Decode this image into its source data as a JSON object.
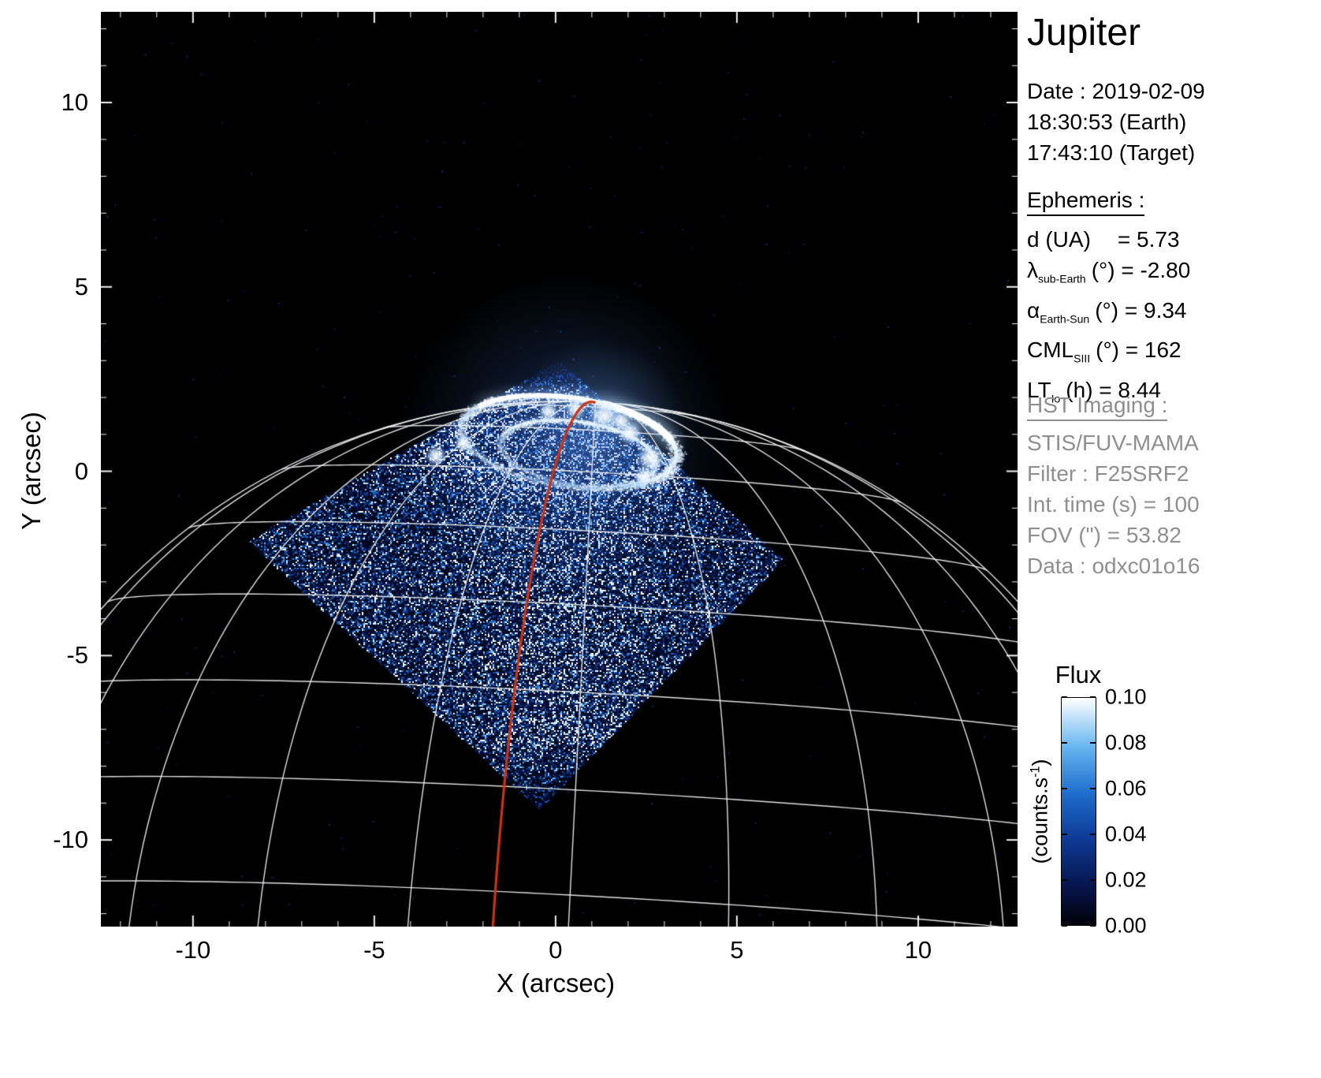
{
  "title": "Jupiter",
  "axes": {
    "x_title": "X (arcsec)",
    "y_title": "Y (arcsec)",
    "x_tick_labels": [
      "-10",
      "-5",
      "0",
      "5",
      "10"
    ],
    "y_tick_labels": [
      "10",
      "5",
      "0",
      "-5",
      "-10"
    ]
  },
  "info": {
    "date_lines": [
      "Date : 2019-02-09",
      "18:30:53 (Earth)",
      "17:43:10 (Target)"
    ],
    "ephemeris_header": "Ephemeris :",
    "ephemeris_rows": [
      {
        "base": "d (UA)",
        "sub": "",
        "rest": "= 5.73",
        "gap": true
      },
      {
        "base": "λ",
        "sub": "sub-Earth",
        "rest": "(°) = -2.80"
      },
      {
        "base": "α",
        "sub": "Earth-Sun",
        "rest": "(°) = 9.34"
      },
      {
        "base": "CML",
        "sub": "SIII",
        "rest": "(°) = 162"
      },
      {
        "base": "LT",
        "sub": "Io",
        "rest": "(h) = 8.44"
      }
    ],
    "hst_header": "HST Imaging :",
    "hst_lines": [
      "STIS/FUV-MAMA",
      "Filter : F25SRF2",
      "Int. time (s) = 100",
      "FOV (\") = 53.82",
      "Data : odxc01o16"
    ]
  },
  "colorbar": {
    "title": "Flux",
    "tick_labels": [
      "0.10",
      "0.08",
      "0.06",
      "0.04",
      "0.02",
      "0.00"
    ],
    "unit": {
      "pre": "(counts.s",
      "sup": "-1",
      "post": ")"
    }
  },
  "chart_data": {
    "type": "heatmap",
    "title": "Jupiter",
    "xlabel": "X (arcsec)",
    "ylabel": "Y (arcsec)",
    "xlim": [
      -12.54,
      12.74
    ],
    "ylim": [
      -12.35,
      12.46
    ],
    "xticks": [
      -10,
      -5,
      0,
      5,
      10
    ],
    "yticks": [
      10,
      5,
      0,
      -5,
      -10
    ],
    "grid_on": false,
    "background": "#000000",
    "flux_scale": {
      "label": "Flux",
      "units": "counts.s-1",
      "min": 0.0,
      "max": 0.1,
      "ticks": [
        0.1,
        0.08,
        0.06,
        0.04,
        0.02,
        0.0
      ]
    },
    "planet_graticule": {
      "center": [
        0.2,
        -15.3
      ],
      "radius_arcsec": 17.2,
      "sub_earth_lat_deg": -2.8,
      "position_angle_deg": 3,
      "lat_step_deg": 10,
      "lon_step_deg": 15,
      "lon_max_deg": 75,
      "color": "#f2f2f2"
    },
    "red_meridian": {
      "lon_deg": -7,
      "color": "#cc3311"
    },
    "fov_quad_arcsec": [
      [
        0.1,
        3.0
      ],
      [
        6.3,
        -2.4
      ],
      [
        -0.45,
        -9.2
      ],
      [
        -8.5,
        -1.9
      ]
    ],
    "aurora": {
      "main_oval": {
        "center": [
          0.35,
          0.8
        ],
        "rx": 3.0,
        "ry": 1.2,
        "rot_deg": -8
      },
      "inner_oval": {
        "center": [
          0.6,
          0.5
        ],
        "rx": 2.15,
        "ry": 0.85,
        "rot_deg": -8
      },
      "clumps": [
        [
          1.35,
          1.5,
          0.42
        ],
        [
          0.55,
          1.68,
          0.3
        ],
        [
          2.05,
          1.05,
          0.35
        ],
        [
          2.62,
          0.35,
          0.4
        ],
        [
          2.45,
          -0.15,
          0.3
        ],
        [
          -3.3,
          0.42,
          0.3
        ],
        [
          -2.55,
          0.75,
          0.26
        ],
        [
          -0.2,
          1.62,
          0.28
        ],
        [
          1.8,
          1.35,
          0.3
        ]
      ]
    },
    "colormap_stops": [
      {
        "t": 0,
        "c": "#010108"
      },
      {
        "t": 0.18,
        "c": "#061650"
      },
      {
        "t": 0.38,
        "c": "#0e3a96"
      },
      {
        "t": 0.58,
        "c": "#1e6ecd"
      },
      {
        "t": 0.78,
        "c": "#64b4f0"
      },
      {
        "t": 1,
        "c": "#ffffff"
      }
    ]
  }
}
